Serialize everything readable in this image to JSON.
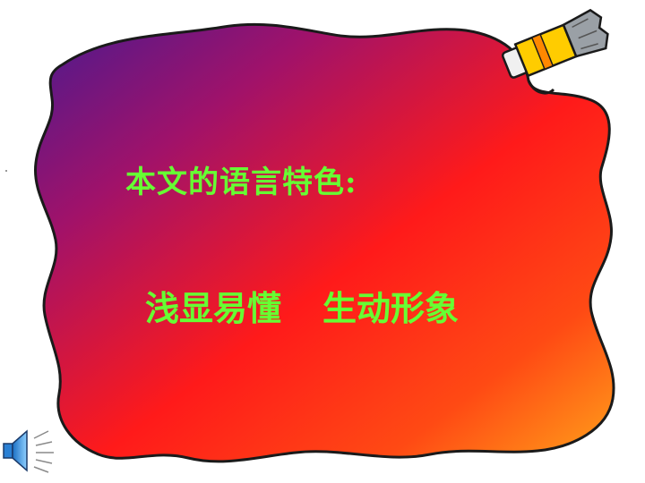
{
  "slide": {
    "heading": "本文的语言特色:",
    "features": [
      "浅显易懂",
      "生动形象"
    ]
  },
  "icons": {
    "paint_tube": "paint-tube-icon",
    "speaker": "speaker-icon"
  },
  "colors": {
    "text": "#66ff33",
    "gradient_start": "#5a1490",
    "gradient_mid": "#ff1a1a",
    "gradient_end": "#ff9a1a",
    "outline": "#1a1a1a"
  }
}
